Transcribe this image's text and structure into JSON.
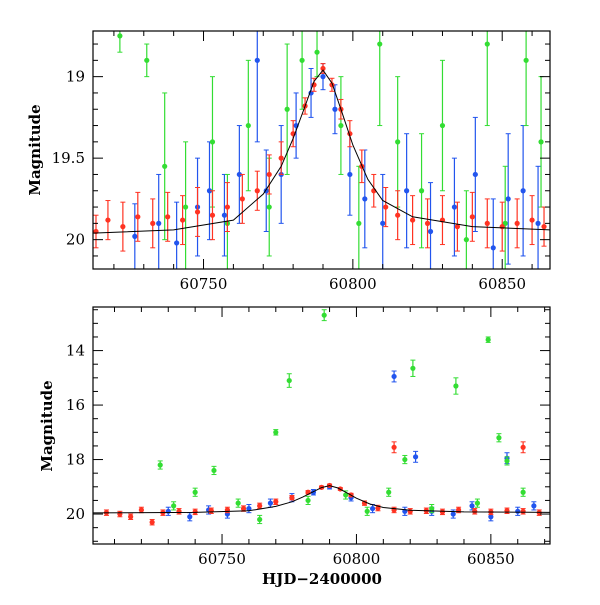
{
  "chart_data": [
    {
      "type": "scatter",
      "title": "",
      "xlabel": "",
      "ylabel": "Magnitude",
      "xlim": [
        60713,
        60866
      ],
      "ylim": [
        20.18,
        18.72
      ],
      "y_inverted": true,
      "grid": false,
      "x_ticks": [
        60750,
        60800,
        60850
      ],
      "y_ticks": [
        19,
        19.5,
        20
      ],
      "x_tick_labels": [
        "60750",
        "60800",
        "60850"
      ],
      "y_tick_labels": [
        "19",
        "19.5",
        "20"
      ],
      "series": [
        {
          "color": "#2255ee",
          "marker": "circle",
          "error_bars": true,
          "points": [
            [
              60727,
              19.98,
              0.2
            ],
            [
              60735,
              19.9,
              0.3
            ],
            [
              60741,
              20.02,
              0.25
            ],
            [
              60748,
              19.8,
              0.3
            ],
            [
              60752,
              19.7,
              0.3
            ],
            [
              60757,
              19.85,
              0.25
            ],
            [
              60762,
              19.6,
              0.3
            ],
            [
              60768,
              18.9,
              0.5
            ],
            [
              60771,
              19.7,
              0.25
            ],
            [
              60776,
              19.6,
              0.3
            ],
            [
              60781,
              19.3,
              0.2
            ],
            [
              60786,
              19.1,
              0.15
            ],
            [
              60790,
              19.0,
              0.08
            ],
            [
              60794,
              19.2,
              0.15
            ],
            [
              60799,
              19.6,
              0.25
            ],
            [
              60804,
              19.75,
              0.3
            ],
            [
              60810,
              19.9,
              0.3
            ],
            [
              60818,
              19.7,
              0.35
            ],
            [
              60826,
              19.95,
              0.3
            ],
            [
              60834,
              19.8,
              0.3
            ],
            [
              60841,
              19.6,
              0.35
            ],
            [
              60847,
              20.05,
              0.3
            ],
            [
              60852,
              19.75,
              0.4
            ],
            [
              60857,
              19.7,
              0.4
            ],
            [
              60862,
              19.9,
              0.35
            ]
          ]
        },
        {
          "color": "#33dd33",
          "marker": "circle",
          "error_bars": true,
          "points": [
            [
              60722,
              18.75,
              0.1
            ],
            [
              60731,
              18.9,
              0.1
            ],
            [
              60737,
              19.55,
              0.45
            ],
            [
              60744,
              19.8,
              0.4
            ],
            [
              60753,
              19.4,
              0.4
            ],
            [
              60758,
              19.9,
              0.3
            ],
            [
              60765,
              19.3,
              0.4
            ],
            [
              60772,
              19.8,
              0.3
            ],
            [
              60778,
              19.2,
              0.4
            ],
            [
              60783,
              18.9,
              0.3
            ],
            [
              60788,
              18.85,
              0.15
            ],
            [
              60796,
              19.3,
              0.3
            ],
            [
              60802,
              19.9,
              0.35
            ],
            [
              60809,
              18.8,
              0.5
            ],
            [
              60815,
              19.4,
              0.4
            ],
            [
              60823,
              19.7,
              0.35
            ],
            [
              60830,
              19.3,
              0.4
            ],
            [
              60838,
              20.0,
              0.3
            ],
            [
              60845,
              18.8,
              0.5
            ],
            [
              60851,
              19.9,
              0.35
            ],
            [
              60858,
              18.9,
              0.4
            ],
            [
              60863,
              19.4,
              0.4
            ]
          ]
        },
        {
          "color": "#ff3322",
          "marker": "circle",
          "error_bars": true,
          "points": [
            [
              60714,
              19.95,
              0.1
            ],
            [
              60718,
              19.88,
              0.12
            ],
            [
              60723,
              19.92,
              0.15
            ],
            [
              60728,
              19.86,
              0.15
            ],
            [
              60733,
              19.9,
              0.15
            ],
            [
              60738,
              19.86,
              0.15
            ],
            [
              60743,
              19.88,
              0.15
            ],
            [
              60748,
              19.83,
              0.15
            ],
            [
              60753,
              19.85,
              0.15
            ],
            [
              60758,
              19.8,
              0.15
            ],
            [
              60763,
              19.75,
              0.15
            ],
            [
              60768,
              19.7,
              0.12
            ],
            [
              60772,
              19.6,
              0.12
            ],
            [
              60776,
              19.5,
              0.1
            ],
            [
              60780,
              19.35,
              0.08
            ],
            [
              60784,
              19.18,
              0.05
            ],
            [
              60787,
              19.05,
              0.04
            ],
            [
              60790,
              18.95,
              0.03
            ],
            [
              60793,
              19.05,
              0.04
            ],
            [
              60796,
              19.2,
              0.06
            ],
            [
              60799,
              19.35,
              0.08
            ],
            [
              60803,
              19.55,
              0.1
            ],
            [
              60807,
              19.7,
              0.1
            ],
            [
              60811,
              19.8,
              0.12
            ],
            [
              60815,
              19.85,
              0.15
            ],
            [
              60820,
              19.88,
              0.15
            ],
            [
              60825,
              19.9,
              0.15
            ],
            [
              60830,
              19.88,
              0.15
            ],
            [
              60835,
              19.92,
              0.15
            ],
            [
              60840,
              19.86,
              0.15
            ],
            [
              60845,
              19.9,
              0.15
            ],
            [
              60850,
              19.92,
              0.15
            ],
            [
              60855,
              19.9,
              0.15
            ],
            [
              60860,
              19.88,
              0.15
            ],
            [
              60864,
              19.92,
              0.12
            ]
          ]
        }
      ],
      "model_curve": {
        "color": "#000000",
        "points": [
          [
            60713,
            19.96
          ],
          [
            60740,
            19.94
          ],
          [
            60760,
            19.88
          ],
          [
            60770,
            19.72
          ],
          [
            60776,
            19.55
          ],
          [
            60780,
            19.38
          ],
          [
            60784,
            19.18
          ],
          [
            60787,
            19.03
          ],
          [
            60790,
            18.96
          ],
          [
            60793,
            19.04
          ],
          [
            60796,
            19.2
          ],
          [
            60800,
            19.42
          ],
          [
            60805,
            19.63
          ],
          [
            60810,
            19.76
          ],
          [
            60820,
            19.86
          ],
          [
            60840,
            19.92
          ],
          [
            60866,
            19.94
          ]
        ]
      }
    },
    {
      "type": "scatter",
      "title": "",
      "xlabel": "HJD−2400000",
      "ylabel": "Magnitude",
      "xlim": [
        60702,
        60872
      ],
      "ylim": [
        21.1,
        12.4
      ],
      "y_inverted": true,
      "grid": false,
      "x_ticks": [
        60750,
        60800,
        60850
      ],
      "y_ticks": [
        14,
        16,
        18,
        20
      ],
      "x_tick_labels": [
        "60750",
        "60800",
        "60850"
      ],
      "y_tick_labels": [
        "14",
        "16",
        "18",
        "20"
      ],
      "series": [
        {
          "color": "#2255ee",
          "marker": "circle",
          "error_bars": true,
          "points": [
            [
              60730,
              19.9,
              0.15
            ],
            [
              60738,
              20.1,
              0.15
            ],
            [
              60745,
              19.85,
              0.15
            ],
            [
              60752,
              20.0,
              0.15
            ],
            [
              60760,
              19.8,
              0.15
            ],
            [
              60768,
              19.6,
              0.15
            ],
            [
              60776,
              19.4,
              0.15
            ],
            [
              60784,
              19.2,
              0.1
            ],
            [
              60790,
              19.0,
              0.08
            ],
            [
              60798,
              19.4,
              0.12
            ],
            [
              60806,
              19.8,
              0.15
            ],
            [
              60814,
              14.95,
              0.2
            ],
            [
              60818,
              19.9,
              0.15
            ],
            [
              60822,
              17.9,
              0.2
            ],
            [
              60828,
              19.9,
              0.15
            ],
            [
              60836,
              20.0,
              0.15
            ],
            [
              60843,
              19.7,
              0.15
            ],
            [
              60850,
              20.1,
              0.15
            ],
            [
              60856,
              17.95,
              0.2
            ],
            [
              60860,
              19.9,
              0.15
            ],
            [
              60866,
              19.7,
              0.15
            ]
          ]
        },
        {
          "color": "#33dd33",
          "marker": "circle",
          "error_bars": true,
          "points": [
            [
              60727,
              18.2,
              0.15
            ],
            [
              60732,
              19.7,
              0.15
            ],
            [
              60740,
              19.2,
              0.15
            ],
            [
              60747,
              18.4,
              0.15
            ],
            [
              60756,
              19.6,
              0.15
            ],
            [
              60764,
              20.2,
              0.15
            ],
            [
              60770,
              17.0,
              0.1
            ],
            [
              60775,
              15.1,
              0.25
            ],
            [
              60782,
              19.5,
              0.15
            ],
            [
              60788,
              12.7,
              0.2
            ],
            [
              60796,
              19.3,
              0.15
            ],
            [
              60804,
              19.9,
              0.15
            ],
            [
              60812,
              19.2,
              0.15
            ],
            [
              60818,
              18.0,
              0.15
            ],
            [
              60821,
              14.65,
              0.3
            ],
            [
              60828,
              19.8,
              0.15
            ],
            [
              60837,
              15.3,
              0.3
            ],
            [
              60845,
              19.6,
              0.15
            ],
            [
              60849,
              13.6,
              0.1
            ],
            [
              60853,
              17.2,
              0.15
            ],
            [
              60856,
              18.05,
              0.15
            ],
            [
              60862,
              19.2,
              0.15
            ]
          ]
        },
        {
          "color": "#ff3322",
          "marker": "circle",
          "error_bars": true,
          "points": [
            [
              60707,
              19.95,
              0.1
            ],
            [
              60712,
              20.0,
              0.1
            ],
            [
              60716,
              20.1,
              0.1
            ],
            [
              60720,
              19.85,
              0.1
            ],
            [
              60724,
              20.3,
              0.1
            ],
            [
              60728,
              19.95,
              0.1
            ],
            [
              60734,
              19.9,
              0.1
            ],
            [
              60740,
              19.92,
              0.1
            ],
            [
              60746,
              19.88,
              0.1
            ],
            [
              60752,
              19.85,
              0.1
            ],
            [
              60758,
              19.8,
              0.1
            ],
            [
              60764,
              19.7,
              0.1
            ],
            [
              60770,
              19.55,
              0.1
            ],
            [
              60776,
              19.4,
              0.08
            ],
            [
              60782,
              19.2,
              0.06
            ],
            [
              60787,
              19.02,
              0.05
            ],
            [
              60790,
              18.95,
              0.05
            ],
            [
              60794,
              19.08,
              0.05
            ],
            [
              60798,
              19.3,
              0.06
            ],
            [
              60803,
              19.6,
              0.08
            ],
            [
              60808,
              19.78,
              0.1
            ],
            [
              60814,
              17.55,
              0.2
            ],
            [
              60814,
              19.85,
              0.1
            ],
            [
              60820,
              19.9,
              0.1
            ],
            [
              60826,
              19.88,
              0.1
            ],
            [
              60832,
              19.92,
              0.1
            ],
            [
              60838,
              19.85,
              0.1
            ],
            [
              60844,
              19.9,
              0.1
            ],
            [
              60850,
              19.92,
              0.1
            ],
            [
              60856,
              19.88,
              0.1
            ],
            [
              60862,
              17.55,
              0.2
            ],
            [
              60862,
              19.9,
              0.1
            ],
            [
              60868,
              19.95,
              0.1
            ]
          ]
        }
      ],
      "model_curve": {
        "color": "#000000",
        "points": [
          [
            60702,
            19.96
          ],
          [
            60740,
            19.94
          ],
          [
            60760,
            19.88
          ],
          [
            60770,
            19.72
          ],
          [
            60776,
            19.55
          ],
          [
            60780,
            19.38
          ],
          [
            60784,
            19.18
          ],
          [
            60787,
            19.03
          ],
          [
            60790,
            18.96
          ],
          [
            60793,
            19.04
          ],
          [
            60796,
            19.2
          ],
          [
            60800,
            19.42
          ],
          [
            60805,
            19.63
          ],
          [
            60810,
            19.76
          ],
          [
            60820,
            19.86
          ],
          [
            60840,
            19.92
          ],
          [
            60872,
            19.94
          ]
        ]
      }
    }
  ]
}
